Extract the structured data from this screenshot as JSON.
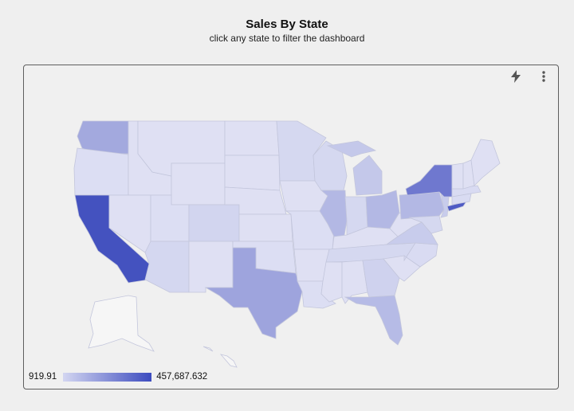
{
  "header": {
    "title": "Sales By State",
    "subtitle": "click any state to filter the dashboard"
  },
  "card": {
    "toolbar": {
      "quick_action_icon": "bolt-icon",
      "more_icon": "more-vertical-icon"
    },
    "legend": {
      "min_label": "919.91",
      "max_label": "457,687.632",
      "color_low": "#d3d6f1",
      "color_high": "#3c4bbf"
    },
    "map": {
      "region": "United States",
      "highlighted_states": [
        {
          "state": "California",
          "shade": "darkest"
        },
        {
          "state": "New York",
          "shade": "dark"
        },
        {
          "state": "Texas",
          "shade": "medium"
        },
        {
          "state": "Washington",
          "shade": "medium"
        },
        {
          "state": "Pennsylvania",
          "shade": "medium"
        },
        {
          "state": "Florida",
          "shade": "medium"
        },
        {
          "state": "Illinois",
          "shade": "medium"
        },
        {
          "state": "Ohio",
          "shade": "medium"
        },
        {
          "state": "Michigan",
          "shade": "light-medium"
        }
      ]
    }
  }
}
